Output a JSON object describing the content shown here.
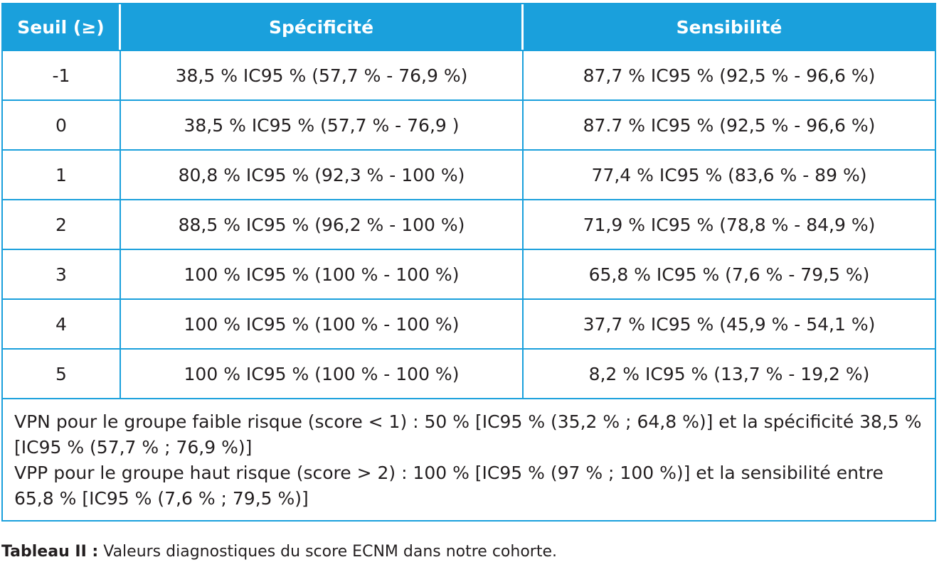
{
  "table": {
    "headers": [
      "Seuil (≥)",
      "Spécificité",
      "Sensibilité"
    ],
    "rows": [
      [
        "-1",
        "38,5 % IC95 % (57,7 % - 76,9 %)",
        "87,7 % IC95 % (92,5 % - 96,6 %)"
      ],
      [
        "0",
        "38,5 % IC95 % (57,7 % - 76,9 )",
        "87.7 % IC95 % (92,5 % - 96,6 %)"
      ],
      [
        "1",
        "80,8 % IC95 % (92,3 % - 100 %)",
        "77,4 % IC95 % (83,6 % - 89 %)"
      ],
      [
        "2",
        "88,5 % IC95 % (96,2 % - 100 %)",
        "71,9 % IC95 % (78,8 % - 84,9 %)"
      ],
      [
        "3",
        "100 % IC95 % (100 % - 100 %)",
        "65,8 % IC95 % (7,6 % - 79,5 %)"
      ],
      [
        "4",
        "100 % IC95 % (100 % - 100 %)",
        "37,7 % IC95 % (45,9 % - 54,1 %)"
      ],
      [
        "5",
        "100 % IC95 % (100 % - 100 %)",
        "8,2 % IC95 % (13,7 % - 19,2 %)"
      ]
    ],
    "notes": [
      "VPN pour le groupe faible risque (score < 1) : 50 % [IC95 % (35,2 % ; 64,8 %)] et la spécificité 38,5 % [IC95 % (57,7 % ; 76,9 %)]",
      "VPP pour le groupe haut risque (score > 2) : 100 % [IC95 % (97 % ; 100 %)] et la sensibilité entre 65,8 % [IC95 % (7,6 % ; 79,5 %)]"
    ]
  },
  "caption": {
    "label": "Tableau II :",
    "text": " Valeurs diagnostiques du score ECNM dans notre cohorte."
  },
  "colors": {
    "accent": "#1aa0dc",
    "text": "#231f20"
  }
}
